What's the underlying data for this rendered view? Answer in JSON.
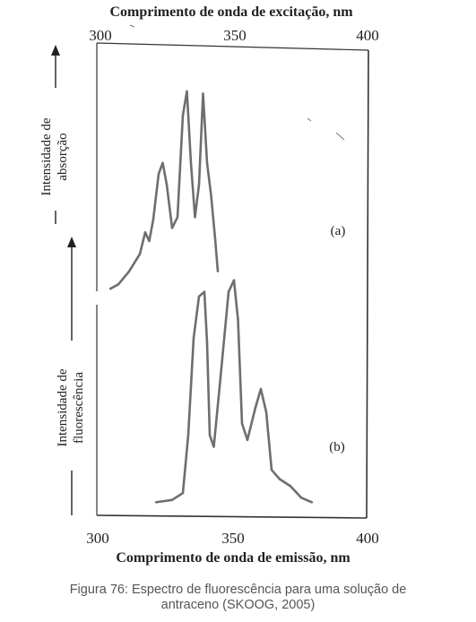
{
  "top_axis_label": "Comprimento de onda de excitação, nm",
  "bottom_axis_label": "Comprimento de onda de emissão, nm",
  "top_ticks": [
    "300",
    "350",
    "400"
  ],
  "bottom_ticks": [
    "300",
    "350",
    "400"
  ],
  "left_label_a_line1": "Intensidade de",
  "left_label_a_line2": "absorção",
  "left_label_b_line1": "Intensidade de",
  "left_label_b_line2": "fluorescência",
  "panel_a_label": "(a)",
  "panel_b_label": "(b)",
  "caption_line1": "Figura 76: Espectro de fluorescência para uma solução de",
  "caption_line2": "antraceno (SKOOG, 2005)",
  "chart_data": [
    {
      "type": "line",
      "panel": "(a)",
      "xlabel": "Comprimento de onda de excitação, nm",
      "ylabel": "Intensidade de absorção",
      "xlim": [
        300,
        400
      ],
      "ylim": [
        0,
        1
      ],
      "x": [
        305,
        308,
        312,
        316,
        318,
        319.5,
        321,
        323,
        324.5,
        326,
        328,
        330,
        332,
        333.5,
        335,
        336.5,
        338,
        339.5,
        341,
        342.5,
        344,
        345
      ],
      "y": [
        0.02,
        0.04,
        0.1,
        0.18,
        0.28,
        0.24,
        0.34,
        0.55,
        0.6,
        0.5,
        0.3,
        0.35,
        0.82,
        0.93,
        0.6,
        0.35,
        0.5,
        0.92,
        0.6,
        0.45,
        0.25,
        0.1
      ]
    },
    {
      "type": "line",
      "panel": "(b)",
      "xlabel": "Comprimento de onda de emissão, nm",
      "ylabel": "Intensidade de fluorescência",
      "xlim": [
        300,
        400
      ],
      "ylim": [
        0,
        1
      ],
      "x": [
        322,
        328,
        332,
        334,
        336,
        338,
        340,
        341,
        342,
        343.5,
        346,
        349,
        351,
        352.5,
        354,
        356,
        359,
        361,
        363,
        365,
        368,
        372,
        376,
        380
      ],
      "y": [
        0.01,
        0.02,
        0.05,
        0.3,
        0.72,
        0.9,
        0.92,
        0.7,
        0.3,
        0.25,
        0.55,
        0.92,
        0.97,
        0.8,
        0.35,
        0.28,
        0.42,
        0.5,
        0.4,
        0.15,
        0.11,
        0.08,
        0.03,
        0.01
      ]
    }
  ]
}
